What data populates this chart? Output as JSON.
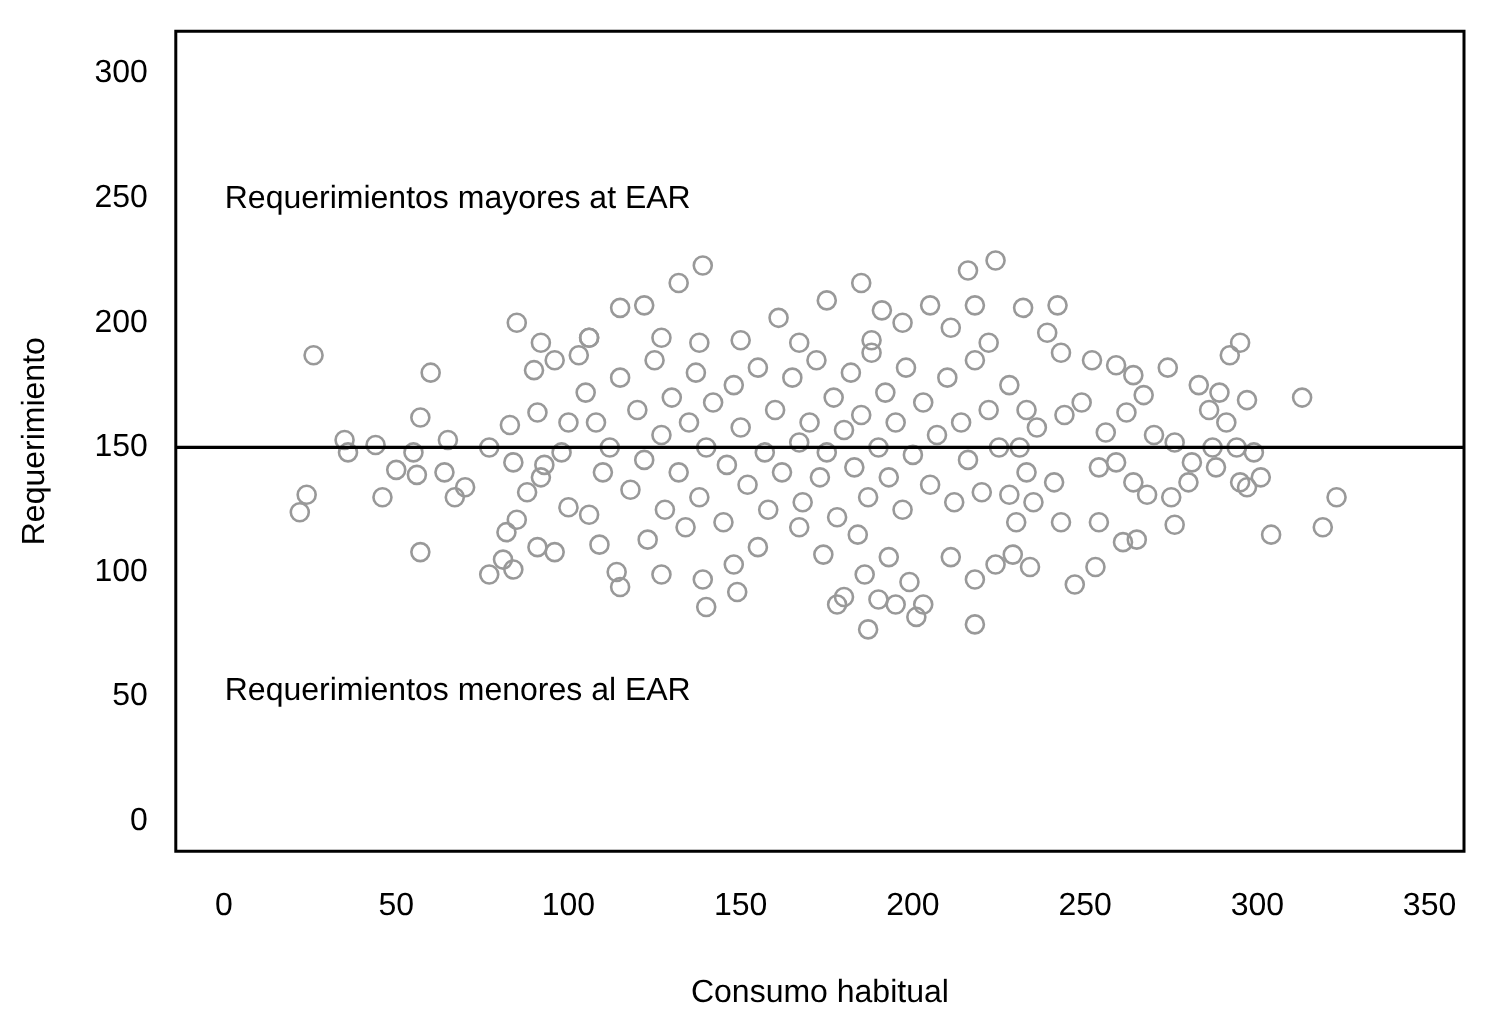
{
  "chart_data": {
    "type": "scatter",
    "xlabel": "Consumo habitual",
    "ylabel": "Requerimiento",
    "annotations": [
      "Requerimientos mayores at EAR",
      "Requerimientos menores al EAR"
    ],
    "ref_lines": [
      {
        "axis": "y",
        "value": 150,
        "color": "#000000"
      }
    ],
    "marker": "circle",
    "color": "#999999",
    "grid": false,
    "legend": false,
    "xlim": [
      -14,
      360
    ],
    "xticks": [
      0,
      50,
      100,
      150,
      200,
      250,
      300,
      350
    ],
    "ylim": [
      -12,
      317
    ],
    "yticks": [
      0,
      50,
      100,
      150,
      200,
      250,
      300
    ],
    "x": [
      26,
      60,
      85,
      57,
      35,
      36,
      44,
      55,
      65,
      77,
      50,
      56,
      64,
      70,
      67,
      24,
      22,
      46,
      57,
      77,
      81,
      84,
      82,
      85,
      91,
      96,
      88,
      92,
      84,
      83,
      90,
      92,
      96,
      106,
      103,
      100,
      106,
      91,
      100,
      98,
      93,
      139,
      132,
      115,
      122,
      185,
      216,
      224,
      175,
      161,
      191,
      205,
      218,
      197,
      106,
      127,
      138,
      150,
      167,
      188,
      211,
      222,
      114,
      115,
      127,
      139,
      140,
      149,
      148,
      109,
      123,
      155,
      174,
      178,
      180,
      187,
      190,
      195,
      201,
      203,
      186,
      199,
      218,
      218,
      224,
      211,
      193,
      184,
      167,
      134,
      232,
      242,
      239,
      243,
      252,
      259,
      264,
      274,
      292,
      295,
      313,
      297,
      283,
      289,
      267,
      286,
      291,
      270,
      276,
      287,
      294,
      299,
      281,
      288,
      295,
      297,
      301,
      280,
      275,
      323,
      304,
      319,
      276,
      265,
      261,
      253,
      247,
      234,
      229,
      254,
      259,
      254,
      264,
      268,
      241,
      243,
      235,
      244,
      256,
      262,
      249,
      233,
      231,
      228,
      105,
      108,
      110,
      112,
      115,
      118,
      120,
      122,
      125,
      127,
      128,
      130,
      132,
      135,
      137,
      138,
      140,
      142,
      145,
      146,
      148,
      150,
      152,
      155,
      157,
      158,
      160,
      162,
      165,
      167,
      168,
      170,
      172,
      173,
      175,
      177,
      178,
      180,
      182,
      183,
      185,
      187,
      188,
      190,
      192,
      193,
      195,
      197,
      198,
      200,
      203,
      205,
      207,
      210,
      212,
      214,
      216,
      218,
      220,
      222,
      225,
      228,
      230,
      233,
      236
    ],
    "values": [
      187,
      180,
      200,
      162,
      153,
      148,
      151,
      148,
      153,
      150,
      141,
      139,
      140,
      134,
      130,
      131,
      124,
      130,
      108,
      99,
      105,
      101,
      116,
      121,
      110,
      108,
      132,
      138,
      144,
      159,
      181,
      192,
      185,
      194,
      187,
      126,
      123,
      164,
      160,
      148,
      143,
      223,
      216,
      206,
      207,
      216,
      221,
      225,
      209,
      202,
      205,
      207,
      207,
      200,
      194,
      194,
      192,
      193,
      192,
      193,
      198,
      192,
      100,
      94,
      99,
      97,
      86,
      92,
      103,
      111,
      113,
      110,
      107,
      87,
      90,
      77,
      89,
      87,
      82,
      87,
      99,
      96,
      79,
      97,
      103,
      106,
      106,
      115,
      118,
      118,
      206,
      207,
      196,
      188,
      185,
      183,
      179,
      182,
      187,
      192,
      170,
      169,
      175,
      172,
      171,
      165,
      160,
      155,
      152,
      150,
      150,
      148,
      144,
      142,
      136,
      134,
      138,
      136,
      130,
      130,
      115,
      118,
      119,
      113,
      112,
      102,
      95,
      102,
      107,
      120,
      144,
      142,
      136,
      131,
      136,
      120,
      128,
      163,
      156,
      164,
      168,
      165,
      150,
      131,
      172,
      160,
      140,
      150,
      178,
      133,
      165,
      145,
      185,
      155,
      125,
      170,
      140,
      160,
      180,
      130,
      150,
      168,
      120,
      143,
      175,
      158,
      135,
      182,
      148,
      125,
      165,
      140,
      178,
      152,
      128,
      160,
      185,
      138,
      148,
      170,
      122,
      157,
      180,
      142,
      163,
      130,
      188,
      150,
      172,
      138,
      160,
      125,
      182,
      147,
      168,
      135,
      155,
      178,
      128,
      160,
      145,
      185,
      132,
      165,
      150,
      175,
      120,
      140,
      158
    ]
  }
}
